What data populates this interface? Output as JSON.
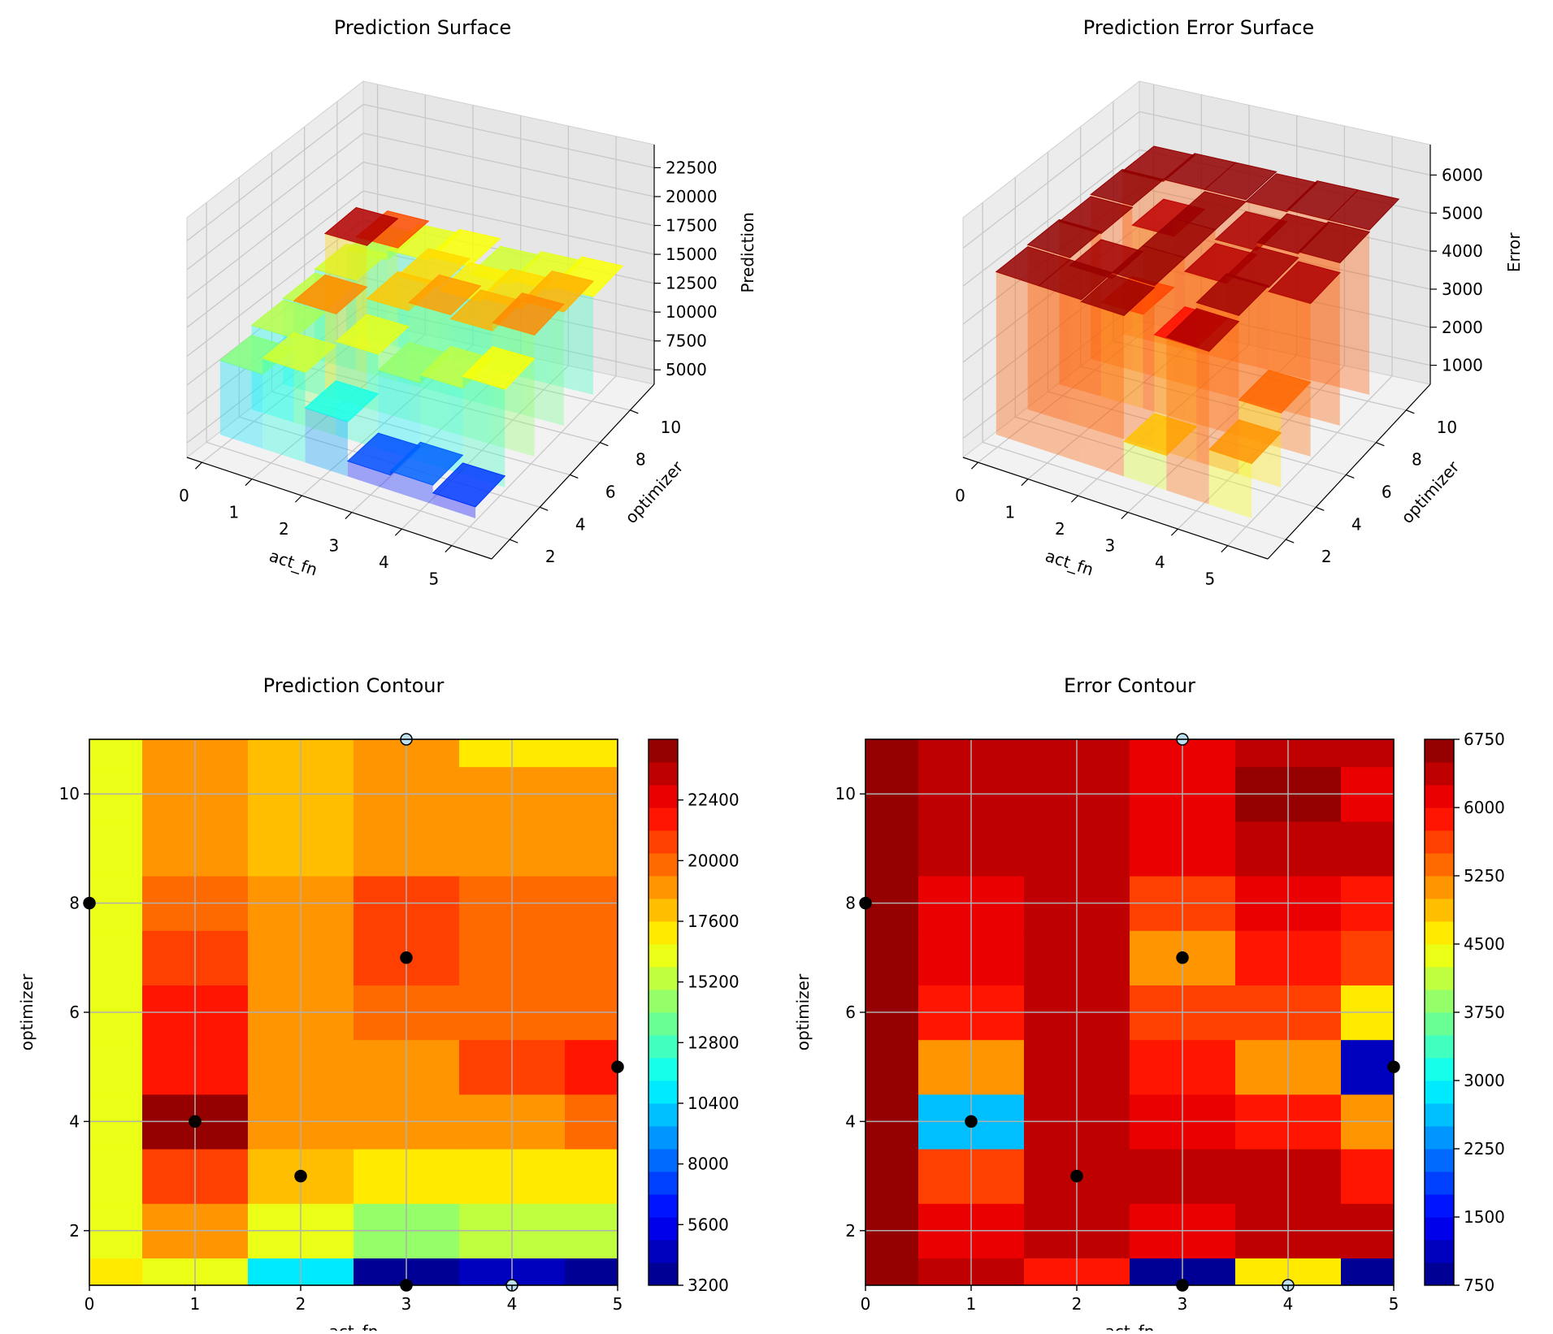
{
  "chart_data": [
    {
      "type": "surface3d",
      "title": "Prediction Surface",
      "xlabel": "act_fn",
      "ylabel": "optimizer",
      "zlabel": "Prediction",
      "x_ticks": [
        "0",
        "1",
        "2",
        "3",
        "4",
        "5"
      ],
      "y_ticks": [
        "2",
        "4",
        "6",
        "8",
        "10"
      ],
      "z_ticks": [
        "5000",
        "7500",
        "10000",
        "12500",
        "15000",
        "17500",
        "20000",
        "22500"
      ],
      "colormap": "jet"
    },
    {
      "type": "surface3d",
      "title": "Prediction Error Surface",
      "xlabel": "act_fn",
      "ylabel": "optimizer",
      "zlabel": "Error",
      "x_ticks": [
        "0",
        "1",
        "2",
        "3",
        "4",
        "5"
      ],
      "y_ticks": [
        "2",
        "4",
        "6",
        "8",
        "10"
      ],
      "z_ticks": [
        "1000",
        "2000",
        "3000",
        "4000",
        "5000",
        "6000"
      ],
      "colormap": "jet"
    },
    {
      "type": "heatmap",
      "title": "Prediction Contour",
      "xlabel": "act_fn",
      "ylabel": "optimizer",
      "xlim": [
        0,
        5
      ],
      "ylim": [
        1,
        11
      ],
      "x_ticks": [
        "0",
        "1",
        "2",
        "3",
        "4",
        "5"
      ],
      "y_ticks": [
        "2",
        "4",
        "6",
        "8",
        "10"
      ],
      "colorbar_ticks": [
        "3200",
        "5600",
        "8000",
        "10400",
        "12800",
        "15200",
        "17600",
        "20000",
        "22400"
      ],
      "vmin": 3200,
      "vmax": 24800,
      "grid": true,
      "x": [
        0,
        1,
        2,
        3,
        4,
        5
      ],
      "y": [
        1,
        2,
        3,
        4,
        5,
        6,
        7,
        8,
        9,
        10,
        11
      ],
      "z": [
        [
          16800,
          15800,
          11000,
          3600,
          4200,
          3300
        ],
        [
          16600,
          18600,
          16000,
          14000,
          15000,
          15000
        ],
        [
          16600,
          20800,
          18000,
          16800,
          16800,
          16800
        ],
        [
          16600,
          24200,
          18600,
          18600,
          18600,
          19800
        ],
        [
          16600,
          22000,
          18600,
          19200,
          20400,
          21600
        ],
        [
          16600,
          21500,
          18600,
          20000,
          20000,
          20000
        ],
        [
          16600,
          20400,
          18600,
          20400,
          19400,
          20000
        ],
        [
          16600,
          19400,
          18600,
          20400,
          20000,
          20000
        ],
        [
          16600,
          18600,
          17800,
          18600,
          18600,
          18600
        ],
        [
          16600,
          18600,
          17800,
          18600,
          18600,
          18600
        ],
        [
          16600,
          18600,
          17800,
          18600,
          17200,
          17200
        ]
      ],
      "points": [
        {
          "x": 0,
          "y": 8,
          "open": false
        },
        {
          "x": 1,
          "y": 4,
          "open": false
        },
        {
          "x": 2,
          "y": 3,
          "open": false
        },
        {
          "x": 3,
          "y": 7,
          "open": false
        },
        {
          "x": 5,
          "y": 5,
          "open": false
        },
        {
          "x": 3,
          "y": 11,
          "open": true
        },
        {
          "x": 3,
          "y": 1,
          "open": false
        },
        {
          "x": 4,
          "y": 1,
          "open": true
        }
      ]
    },
    {
      "type": "heatmap",
      "title": "Error Contour",
      "xlabel": "act_fn",
      "ylabel": "optimizer",
      "xlim": [
        0,
        5
      ],
      "ylim": [
        1,
        11
      ],
      "x_ticks": [
        "0",
        "1",
        "2",
        "3",
        "4",
        "5"
      ],
      "y_ticks": [
        "2",
        "4",
        "6",
        "8",
        "10"
      ],
      "colorbar_ticks": [
        "750",
        "1500",
        "2250",
        "3000",
        "3750",
        "4500",
        "5250",
        "6000",
        "6750"
      ],
      "vmin": 750,
      "vmax": 6750,
      "grid": true,
      "x": [
        0,
        1,
        2,
        3,
        4,
        5
      ],
      "y": [
        1,
        2,
        3,
        4,
        5,
        6,
        7,
        8,
        9,
        10,
        11
      ],
      "z": [
        [
          6600,
          6300,
          5800,
          900,
          4600,
          900
        ],
        [
          6600,
          6000,
          6300,
          6000,
          6300,
          6300
        ],
        [
          6600,
          5500,
          6300,
          6300,
          6300,
          5800
        ],
        [
          6600,
          2700,
          6300,
          6000,
          5800,
          5000
        ],
        [
          6600,
          5200,
          6300,
          5800,
          5200,
          1200
        ],
        [
          6600,
          5800,
          6300,
          5500,
          5500,
          4600
        ],
        [
          6600,
          6000,
          6300,
          5200,
          5800,
          5500
        ],
        [
          6600,
          6000,
          6300,
          5500,
          6000,
          5800
        ],
        [
          6600,
          6300,
          6300,
          6000,
          6300,
          6300
        ],
        [
          6600,
          6300,
          6300,
          6000,
          6600,
          6000
        ],
        [
          6600,
          6300,
          6300,
          6000,
          6300,
          6300
        ]
      ],
      "points": [
        {
          "x": 0,
          "y": 8,
          "open": false
        },
        {
          "x": 1,
          "y": 4,
          "open": false
        },
        {
          "x": 2,
          "y": 3,
          "open": false
        },
        {
          "x": 3,
          "y": 7,
          "open": false
        },
        {
          "x": 5,
          "y": 5,
          "open": false
        },
        {
          "x": 3,
          "y": 11,
          "open": true
        },
        {
          "x": 3,
          "y": 1,
          "open": false
        },
        {
          "x": 4,
          "y": 1,
          "open": true
        }
      ]
    }
  ]
}
